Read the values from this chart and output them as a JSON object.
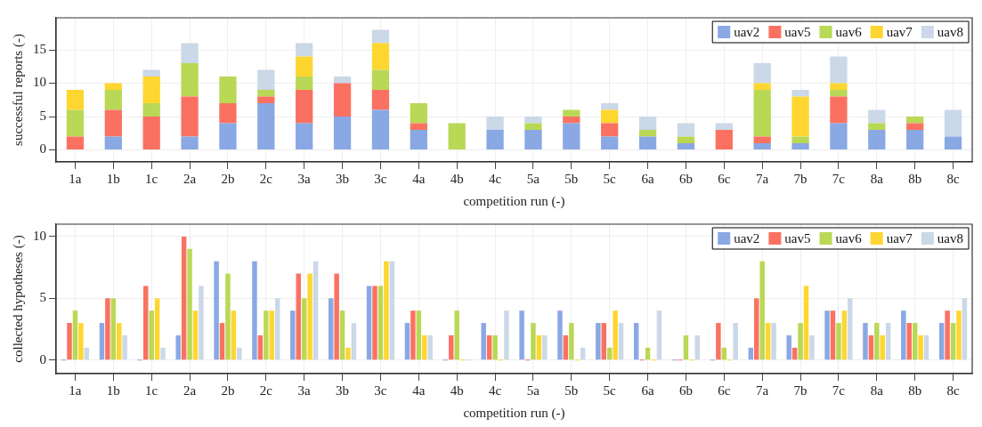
{
  "chart_data": [
    {
      "type": "bar",
      "stacked": true,
      "xlabel": "competition run (-)",
      "ylabel": "successful reports (-)",
      "categories": [
        "1a",
        "1b",
        "1c",
        "2a",
        "2b",
        "2c",
        "3a",
        "3b",
        "3c",
        "4a",
        "4b",
        "4c",
        "5a",
        "5b",
        "5c",
        "6a",
        "6b",
        "6c",
        "7a",
        "7b",
        "7c",
        "8a",
        "8b",
        "8c"
      ],
      "series": [
        {
          "name": "uav2",
          "color": "#89a8e4",
          "values": [
            0,
            2,
            0,
            2,
            4,
            7,
            4,
            5,
            6,
            3,
            0,
            3,
            3,
            4,
            2,
            2,
            1,
            0,
            1,
            1,
            4,
            3,
            3,
            2
          ]
        },
        {
          "name": "uav5",
          "color": "#fb7161",
          "values": [
            2,
            4,
            5,
            6,
            3,
            1,
            5,
            5,
            3,
            1,
            0,
            0,
            0,
            1,
            2,
            0,
            0,
            3,
            1,
            0,
            4,
            0,
            1,
            0
          ]
        },
        {
          "name": "uav6",
          "color": "#b9d855",
          "values": [
            4,
            3,
            2,
            5,
            4,
            1,
            2,
            0,
            3,
            3,
            4,
            0,
            1,
            1,
            0,
            1,
            1,
            0,
            7,
            1,
            1,
            1,
            1,
            0
          ]
        },
        {
          "name": "uav7",
          "color": "#fed630",
          "values": [
            3,
            1,
            4,
            0,
            0,
            0,
            3,
            0,
            4,
            0,
            0,
            0,
            0,
            0,
            2,
            0,
            0,
            0,
            1,
            6,
            1,
            0,
            0,
            0
          ]
        },
        {
          "name": "uav8",
          "color": "#cad8e8",
          "values": [
            0,
            0,
            1,
            3,
            0,
            3,
            2,
            1,
            2,
            0,
            0,
            2,
            1,
            0,
            1,
            2,
            2,
            1,
            3,
            1,
            4,
            2,
            0,
            4
          ]
        }
      ],
      "ylim": [
        -1.8,
        19.8
      ],
      "yticks": [
        0,
        5,
        10,
        15
      ],
      "grid": true,
      "legend": "top right"
    },
    {
      "type": "bar",
      "xlabel": "competition run (-)",
      "ylabel": "collected hypotheses (-)",
      "categories": [
        "1a",
        "1b",
        "1c",
        "2a",
        "2b",
        "2c",
        "3a",
        "3b",
        "3c",
        "4a",
        "4b",
        "4c",
        "5a",
        "5b",
        "5c",
        "6a",
        "6b",
        "6c",
        "7a",
        "7b",
        "7c",
        "8a",
        "8b",
        "8c"
      ],
      "series": [
        {
          "name": "uav2",
          "color": "#89a8e4",
          "values": [
            0,
            3,
            0,
            2,
            8,
            8,
            4,
            5,
            6,
            3,
            0,
            3,
            4,
            4,
            3,
            3,
            0,
            0,
            1,
            2,
            4,
            3,
            4,
            3
          ]
        },
        {
          "name": "uav5",
          "color": "#fb7161",
          "values": [
            3,
            5,
            6,
            10,
            3,
            2,
            7,
            7,
            6,
            4,
            2,
            2,
            0,
            2,
            3,
            0,
            0,
            3,
            5,
            1,
            4,
            2,
            3,
            4
          ]
        },
        {
          "name": "uav6",
          "color": "#b9d855",
          "values": [
            4,
            5,
            4,
            9,
            7,
            4,
            5,
            4,
            6,
            4,
            4,
            2,
            3,
            3,
            1,
            1,
            2,
            1,
            8,
            3,
            3,
            3,
            3,
            3
          ]
        },
        {
          "name": "uav7",
          "color": "#fed630",
          "values": [
            3,
            3,
            5,
            4,
            4,
            4,
            7,
            1,
            8,
            2,
            0,
            0,
            2,
            0,
            4,
            0,
            0,
            0,
            3,
            6,
            4,
            2,
            2,
            4
          ]
        },
        {
          "name": "uav8",
          "color": "#cad8e8",
          "values": [
            1,
            2,
            1,
            6,
            1,
            5,
            8,
            3,
            8,
            2,
            0,
            4,
            2,
            1,
            3,
            4,
            2,
            3,
            3,
            2,
            5,
            3,
            2,
            5
          ]
        }
      ],
      "ylim": [
        -1.1,
        11
      ],
      "yticks": [
        0,
        5,
        10
      ],
      "grid": true,
      "legend": "top right"
    }
  ]
}
